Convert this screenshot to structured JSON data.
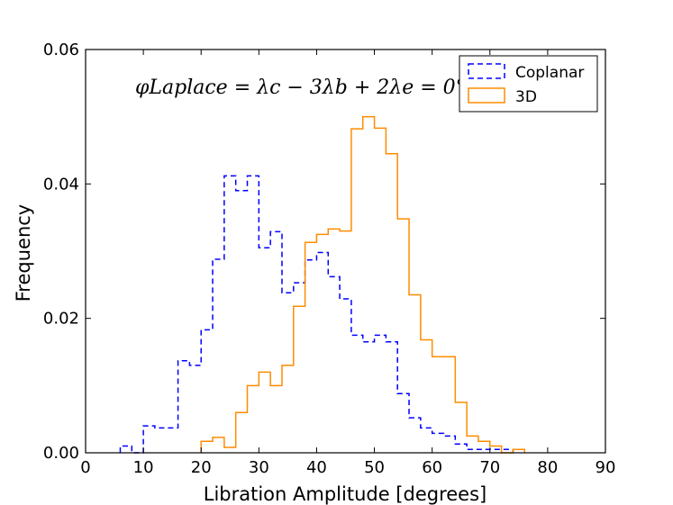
{
  "chart_data": {
    "type": "histogram-step",
    "title": "",
    "xlabel": "Libration Amplitude [degrees]",
    "ylabel": "Frequency",
    "xlim": [
      0,
      90
    ],
    "ylim": [
      0,
      0.06
    ],
    "xticks": [
      0,
      10,
      20,
      30,
      40,
      50,
      60,
      70,
      80,
      90
    ],
    "yticks": [
      0.0,
      0.02,
      0.04,
      0.06
    ],
    "xtick_labels": [
      "0",
      "10",
      "20",
      "30",
      "40",
      "50",
      "60",
      "70",
      "80",
      "90"
    ],
    "ytick_labels": [
      "0.00",
      "0.02",
      "0.04",
      "0.06"
    ],
    "bin_width": 2,
    "grid": false,
    "legend_position": "top-right",
    "annotation": "φLaplace = λc − 3λb + 2λe = 0°",
    "series": [
      {
        "name": "Coplanar",
        "color": "#0000ff",
        "linestyle": "dashed",
        "bin_start": 6,
        "values": [
          0.001,
          0.0,
          0.004,
          0.0037,
          0.0037,
          0.0137,
          0.013,
          0.0183,
          0.0288,
          0.0412,
          0.039,
          0.0412,
          0.0305,
          0.0329,
          0.0238,
          0.0253,
          0.0287,
          0.0298,
          0.0262,
          0.0229,
          0.0175,
          0.0165,
          0.0175,
          0.0165,
          0.0088,
          0.0052,
          0.0037,
          0.0029,
          0.0025,
          0.0013,
          0.0005,
          0.0005,
          0.0005,
          0.0005
        ]
      },
      {
        "name": "3D",
        "color": "#ff8c00",
        "linestyle": "solid",
        "bin_start": 20,
        "values": [
          0.0017,
          0.0023,
          0.0008,
          0.006,
          0.01,
          0.012,
          0.01,
          0.013,
          0.0218,
          0.0313,
          0.0325,
          0.0333,
          0.033,
          0.0482,
          0.05,
          0.0483,
          0.0445,
          0.0348,
          0.0235,
          0.0168,
          0.0143,
          0.0143,
          0.0075,
          0.0025,
          0.0017,
          0.001,
          0.0,
          0.0005
        ]
      }
    ]
  }
}
